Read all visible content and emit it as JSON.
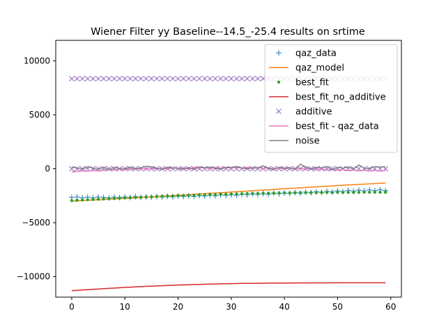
{
  "chart_data": {
    "type": "line",
    "title": "Wiener Filter yy Baseline--14.5_-25.4 results on srtime",
    "xlabel": "",
    "ylabel": "",
    "xlim": [
      -3,
      62
    ],
    "ylim": [
      -11900,
      11900
    ],
    "xticks": [
      0,
      10,
      20,
      30,
      40,
      50,
      60
    ],
    "yticks": [
      -10000,
      -5000,
      0,
      5000,
      10000
    ],
    "grid": false,
    "legend_position": "top-right",
    "x": [
      0,
      1,
      2,
      3,
      4,
      5,
      6,
      7,
      8,
      9,
      10,
      11,
      12,
      13,
      14,
      15,
      16,
      17,
      18,
      19,
      20,
      21,
      22,
      23,
      24,
      25,
      26,
      27,
      28,
      29,
      30,
      31,
      32,
      33,
      34,
      35,
      36,
      37,
      38,
      39,
      40,
      41,
      42,
      43,
      44,
      45,
      46,
      47,
      48,
      49,
      50,
      51,
      52,
      53,
      54,
      55,
      56,
      57,
      58,
      59
    ],
    "series": [
      {
        "name": "qaz_data",
        "kind": "marker",
        "marker": "plus",
        "color": "#1f77b4",
        "values": [
          -2650,
          -2610,
          -2690,
          -2630,
          -2700,
          -2620,
          -2660,
          -2700,
          -2630,
          -2680,
          -2610,
          -2680,
          -2590,
          -2660,
          -2610,
          -2640,
          -2570,
          -2620,
          -2560,
          -2610,
          -2530,
          -2580,
          -2500,
          -2570,
          -2480,
          -2530,
          -2460,
          -2510,
          -2420,
          -2470,
          -2400,
          -2460,
          -2370,
          -2420,
          -2330,
          -2390,
          -2300,
          -2360,
          -2260,
          -2310,
          -2250,
          -2290,
          -2200,
          -2270,
          -2160,
          -2220,
          -2130,
          -2190,
          -2090,
          -2150,
          -2050,
          -2120,
          -2010,
          -2080,
          -1980,
          -2050,
          -1960,
          -2030,
          -1950,
          -2020
        ]
      },
      {
        "name": "qaz_model",
        "kind": "line",
        "color": "#ff7f0e",
        "values": [
          -3000,
          -2975,
          -2950,
          -2925,
          -2900,
          -2875,
          -2850,
          -2825,
          -2800,
          -2775,
          -2750,
          -2725,
          -2700,
          -2670,
          -2640,
          -2610,
          -2580,
          -2550,
          -2520,
          -2490,
          -2460,
          -2430,
          -2400,
          -2370,
          -2340,
          -2310,
          -2280,
          -2250,
          -2220,
          -2190,
          -2160,
          -2130,
          -2100,
          -2070,
          -2040,
          -2010,
          -1980,
          -1950,
          -1920,
          -1890,
          -1860,
          -1830,
          -1800,
          -1770,
          -1740,
          -1710,
          -1680,
          -1650,
          -1620,
          -1590,
          -1560,
          -1530,
          -1500,
          -1475,
          -1450,
          -1425,
          -1400,
          -1375,
          -1350,
          -1330
        ]
      },
      {
        "name": "best_fit",
        "kind": "marker",
        "marker": "dot",
        "color": "#2ca02c",
        "values": [
          -2950,
          -2920,
          -2900,
          -2870,
          -2850,
          -2820,
          -2800,
          -2770,
          -2750,
          -2720,
          -2700,
          -2680,
          -2660,
          -2640,
          -2620,
          -2600,
          -2580,
          -2560,
          -2540,
          -2520,
          -2500,
          -2490,
          -2470,
          -2450,
          -2430,
          -2420,
          -2400,
          -2390,
          -2370,
          -2360,
          -2350,
          -2330,
          -2320,
          -2310,
          -2300,
          -2290,
          -2280,
          -2270,
          -2260,
          -2250,
          -2240,
          -2240,
          -2230,
          -2220,
          -2220,
          -2210,
          -2210,
          -2200,
          -2200,
          -2200,
          -2190,
          -2190,
          -2190,
          -2190,
          -2180,
          -2180,
          -2180,
          -2180,
          -2180,
          -2180
        ]
      },
      {
        "name": "best_fit_no_additive",
        "kind": "line",
        "color": "#d62728",
        "values": [
          -11300,
          -11270,
          -11240,
          -11210,
          -11180,
          -11150,
          -11120,
          -11090,
          -11060,
          -11030,
          -11000,
          -10975,
          -10950,
          -10925,
          -10900,
          -10880,
          -10860,
          -10840,
          -10820,
          -10800,
          -10780,
          -10765,
          -10750,
          -10735,
          -10720,
          -10705,
          -10690,
          -10680,
          -10670,
          -10660,
          -10650,
          -10640,
          -10630,
          -10625,
          -10620,
          -10615,
          -10610,
          -10605,
          -10600,
          -10595,
          -10590,
          -10588,
          -10586,
          -10584,
          -10582,
          -10580,
          -10578,
          -10577,
          -10576,
          -10575,
          -10574,
          -10573,
          -10572,
          -10571,
          -10570,
          -10570,
          -10570,
          -10570,
          -10570,
          -10570
        ]
      },
      {
        "name": "additive",
        "kind": "marker",
        "marker": "x",
        "color": "#9467bd",
        "values": [
          8350,
          8350,
          8350,
          8350,
          8350,
          8350,
          8350,
          8350,
          8350,
          8350,
          8350,
          8350,
          8350,
          8350,
          8350,
          8350,
          8350,
          8350,
          8350,
          8350,
          8350,
          8350,
          8350,
          8350,
          8350,
          8350,
          8350,
          8350,
          8350,
          8350,
          8350,
          8350,
          8350,
          8350,
          8350,
          8350,
          8350,
          8350,
          8350,
          8350,
          8350,
          8350,
          8350,
          8350,
          8350,
          8350,
          8350,
          8350,
          8350,
          8350,
          8350,
          8350,
          8350,
          8350,
          8350,
          8350,
          8350,
          8350,
          8350,
          8350
        ],
        "values_lower": [
          0,
          0,
          0,
          0,
          0,
          0,
          0,
          0,
          0,
          0,
          0,
          0,
          0,
          0,
          0,
          0,
          0,
          0,
          0,
          0,
          0,
          0,
          0,
          0,
          0,
          0,
          0,
          0,
          0,
          0,
          0,
          0,
          0,
          0,
          0,
          0,
          0,
          0,
          0,
          0,
          0,
          0,
          0,
          0,
          0,
          0,
          0,
          0,
          0,
          0,
          0,
          0,
          0,
          0,
          0,
          0,
          0,
          0,
          0,
          0
        ]
      },
      {
        "name": "best_fit - qaz_data",
        "kind": "line",
        "color": "#e377c2",
        "values": [
          -300,
          -250,
          -200,
          -230,
          -160,
          -200,
          -140,
          -70,
          -130,
          -40,
          -90,
          0,
          -60,
          20,
          -10,
          40,
          -10,
          60,
          -20,
          90,
          30,
          90,
          -40,
          120,
          50,
          110,
          0,
          120,
          60,
          110,
          50,
          130,
          50,
          110,
          30,
          100,
          20,
          90,
          -10,
          60,
          -20,
          50,
          -30,
          50,
          -60,
          10,
          -80,
          0,
          -110,
          -50,
          -140,
          -70,
          -180,
          -110,
          -200,
          -130,
          -220,
          -150,
          -230,
          -160
        ]
      },
      {
        "name": "noise",
        "kind": "line",
        "color": "#7f7f7f",
        "values": [
          150,
          80,
          -50,
          180,
          60,
          -70,
          140,
          -100,
          120,
          20,
          -40,
          160,
          -20,
          90,
          230,
          180,
          40,
          -60,
          130,
          80,
          20,
          -40,
          100,
          -60,
          170,
          90,
          150,
          40,
          -30,
          120,
          110,
          200,
          80,
          -20,
          100,
          50,
          280,
          30,
          -80,
          130,
          60,
          90,
          -60,
          420,
          170,
          -40,
          130,
          90,
          200,
          -90,
          120,
          40,
          160,
          -30,
          350,
          60,
          -10,
          200,
          150,
          190
        ]
      }
    ]
  }
}
